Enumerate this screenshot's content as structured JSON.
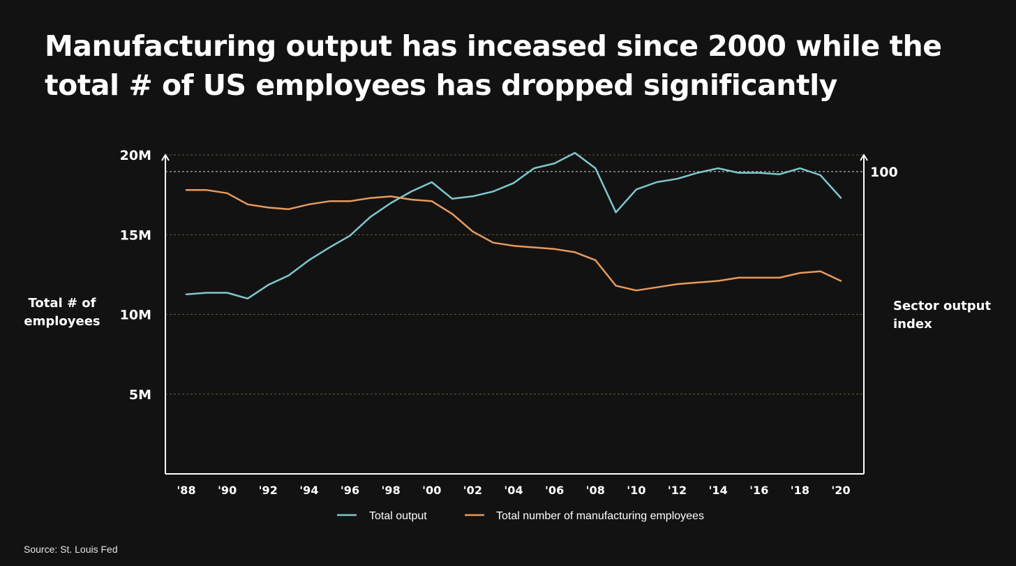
{
  "title": {
    "line1": "Manufacturing output has inceased since 2000 while the",
    "line2": "total # of US employees has dropped significantly"
  },
  "source": "Source: St. Louis Fed",
  "colors": {
    "background": "#131212",
    "output": "#7ec8cf",
    "employees": "#e89b5c",
    "grid": "#6b5a3e",
    "axis": "#ffffff"
  },
  "chart_data": {
    "type": "line",
    "x": [
      1988,
      1989,
      1990,
      1991,
      1992,
      1993,
      1994,
      1995,
      1996,
      1997,
      1998,
      1999,
      2000,
      2001,
      2002,
      2003,
      2004,
      2005,
      2006,
      2007,
      2008,
      2009,
      2010,
      2011,
      2012,
      2013,
      2014,
      2015,
      2016,
      2017,
      2018,
      2019,
      2020
    ],
    "x_tick_labels": [
      "'88",
      "'90",
      "'92",
      "'94",
      "'96",
      "'98",
      "'00",
      "'02",
      "'04",
      "'06",
      "'08",
      "'10",
      "'12",
      "'14",
      "'16",
      "'18",
      "'20"
    ],
    "x_ticks": [
      1988,
      1990,
      1992,
      1994,
      1996,
      1998,
      2000,
      2002,
      2004,
      2006,
      2008,
      2010,
      2012,
      2014,
      2016,
      2018,
      2020
    ],
    "left_axis": {
      "label": "Total # of employees",
      "ylim": [
        0,
        20000000
      ],
      "ticks": [
        5000000,
        10000000,
        15000000,
        20000000
      ],
      "tick_labels": [
        "5M",
        "10M",
        "15M",
        "20M"
      ]
    },
    "right_axis": {
      "label": "Sector output index",
      "ticks": [
        100
      ],
      "tick_labels": [
        "100"
      ],
      "ylim": [
        0,
        105.5
      ]
    },
    "series": [
      {
        "name": "Total output",
        "axis": "right",
        "values": [
          59.4,
          59.9,
          59.9,
          58.0,
          62.5,
          65.6,
          70.7,
          74.9,
          78.8,
          85.0,
          89.6,
          93.4,
          96.5,
          91.0,
          91.8,
          93.4,
          96.2,
          101.1,
          102.7,
          106.2,
          101.1,
          86.5,
          94.1,
          96.5,
          97.6,
          99.6,
          101.1,
          99.6,
          99.6,
          99.1,
          101.1,
          98.8,
          91.3
        ]
      },
      {
        "name": "Total number of manufacturing employees",
        "axis": "left",
        "values": [
          17800000,
          17800000,
          17600000,
          16900000,
          16700000,
          16600000,
          16900000,
          17100000,
          17100000,
          17300000,
          17400000,
          17200000,
          17100000,
          16300000,
          15200000,
          14500000,
          14300000,
          14200000,
          14100000,
          13900000,
          13400000,
          11800000,
          11500000,
          11700000,
          11900000,
          12000000,
          12100000,
          12300000,
          12300000,
          12300000,
          12600000,
          12700000,
          12100000
        ]
      }
    ],
    "grid": true,
    "legend": "bottom-center"
  }
}
